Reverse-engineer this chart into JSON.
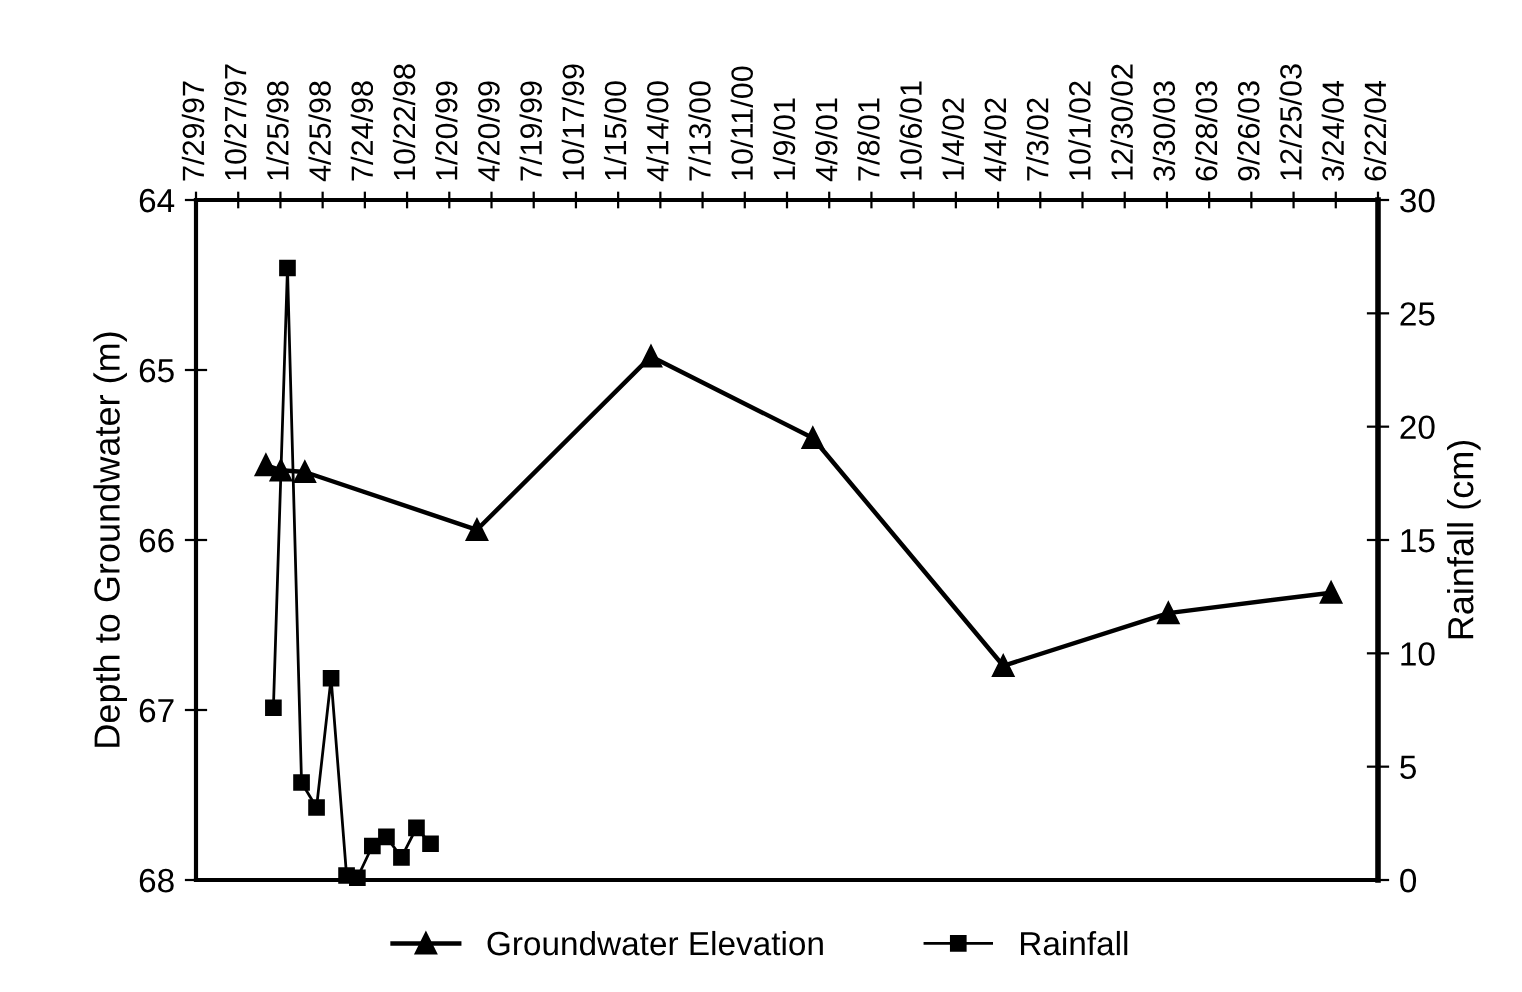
{
  "chart_data": {
    "type": "line",
    "ylabel": "Depth to Groundwater (m)",
    "y2label": "Rainfall (cm)",
    "ylim": [
      68,
      64
    ],
    "yticks": [
      64,
      65,
      66,
      67,
      68
    ],
    "y2lim": [
      0,
      30
    ],
    "y2ticks": [
      0,
      5,
      10,
      15,
      20,
      25,
      30
    ],
    "xlim": [
      "1997-07-29",
      "2004-06-22"
    ],
    "xticks": [
      {
        "value": "1997-07-29",
        "label": "7/29/97"
      },
      {
        "value": "1997-10-27",
        "label": "10/27/97"
      },
      {
        "value": "1998-01-25",
        "label": "1/25/98"
      },
      {
        "value": "1998-04-25",
        "label": "4/25/98"
      },
      {
        "value": "1998-07-24",
        "label": "7/24/98"
      },
      {
        "value": "1998-10-22",
        "label": "10/22/98"
      },
      {
        "value": "1999-01-20",
        "label": "1/20/99"
      },
      {
        "value": "1999-04-20",
        "label": "4/20/99"
      },
      {
        "value": "1999-07-19",
        "label": "7/19/99"
      },
      {
        "value": "1999-10-17",
        "label": "10/17/99"
      },
      {
        "value": "2000-01-15",
        "label": "1/15/00"
      },
      {
        "value": "2000-04-14",
        "label": "4/14/00"
      },
      {
        "value": "2000-07-13",
        "label": "7/13/00"
      },
      {
        "value": "2000-10-11",
        "label": "10/11/00"
      },
      {
        "value": "2001-01-09",
        "label": "1/9/01"
      },
      {
        "value": "2001-04-09",
        "label": "4/9/01"
      },
      {
        "value": "2001-07-08",
        "label": "7/8/01"
      },
      {
        "value": "2001-10-06",
        "label": "10/6/01"
      },
      {
        "value": "2002-01-04",
        "label": "1/4/02"
      },
      {
        "value": "2002-04-04",
        "label": "4/4/02"
      },
      {
        "value": "2002-07-03",
        "label": "7/3/02"
      },
      {
        "value": "2002-10-01",
        "label": "10/1/02"
      },
      {
        "value": "2002-12-30",
        "label": "12/30/02"
      },
      {
        "value": "2003-03-30",
        "label": "3/30/03"
      },
      {
        "value": "2003-06-28",
        "label": "6/28/03"
      },
      {
        "value": "2003-09-26",
        "label": "9/26/03"
      },
      {
        "value": "2003-12-25",
        "label": "12/25/03"
      },
      {
        "value": "2004-03-24",
        "label": "3/24/04"
      },
      {
        "value": "2004-06-22",
        "label": "6/22/04"
      }
    ],
    "grid": false,
    "legend": "bottom",
    "series": [
      {
        "name": "Groundwater Elevation",
        "color": "#000000",
        "marker": "triangle",
        "x": [
          "1997-12-25",
          "1998-01-26",
          "1998-03-18",
          "1999-03-20",
          "2000-03-25",
          "2001-03-05",
          "2002-04-15",
          "2003-04-02",
          "2004-03-14"
        ],
        "values": [
          65.56,
          65.59,
          65.6,
          65.94,
          64.92,
          65.4,
          66.74,
          66.43,
          66.31
        ]
      },
      {
        "name": "Rainfall",
        "color": "#000000",
        "marker": "square",
        "axis": "y2",
        "x": [
          "1998-01-10",
          "1998-02-09",
          "1998-03-11",
          "1998-04-12",
          "1998-05-13",
          "1998-06-15",
          "1998-07-08",
          "1998-08-09",
          "1998-09-08",
          "1998-10-10",
          "1998-11-11",
          "1998-12-11"
        ],
        "values": [
          7.6,
          27.0,
          4.3,
          3.2,
          8.9,
          0.2,
          0.1,
          1.5,
          1.9,
          1.0,
          2.3,
          1.6
        ]
      }
    ]
  }
}
